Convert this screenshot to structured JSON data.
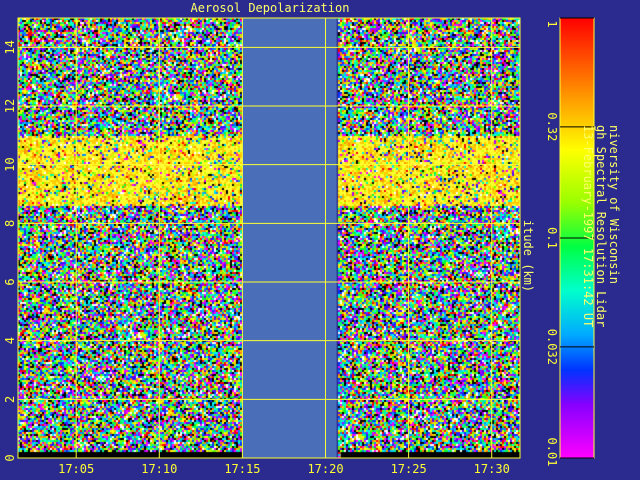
{
  "chart_data": {
    "type": "heatmap",
    "title": "Aerosol Depolarization",
    "ylabel": "itude (km)",
    "x_ticks": [
      "17:05",
      "17:10",
      "17:15",
      "17:20",
      "17:25",
      "17:30"
    ],
    "y_ticks": [
      "0",
      "2",
      "4",
      "6",
      "8",
      "10",
      "12",
      "14"
    ],
    "ylim": [
      0,
      15
    ],
    "xlim": [
      "17:01:30",
      "17:31:42"
    ],
    "no_data_interval": [
      "17:15",
      "17:20:40"
    ],
    "cloud_layer_km": [
      8.6,
      11.0
    ],
    "colorbar": {
      "scale": "log",
      "range": [
        0.01,
        1
      ],
      "tick_labels": [
        "1",
        "0.32",
        "0.1",
        "0.032",
        "0.01"
      ],
      "tick_values": [
        1,
        0.32,
        0.1,
        0.032,
        0.01
      ]
    },
    "grid": true
  },
  "info": {
    "line1": "niversity of Wisconsin",
    "line2": "gh Spectral Resolution Lidar",
    "line3": "13-February-1997 17:31:42 UT"
  },
  "colors": {
    "background": "#2b2b8f",
    "axes": "#ffff33",
    "no_data": "#4a6fb8"
  }
}
